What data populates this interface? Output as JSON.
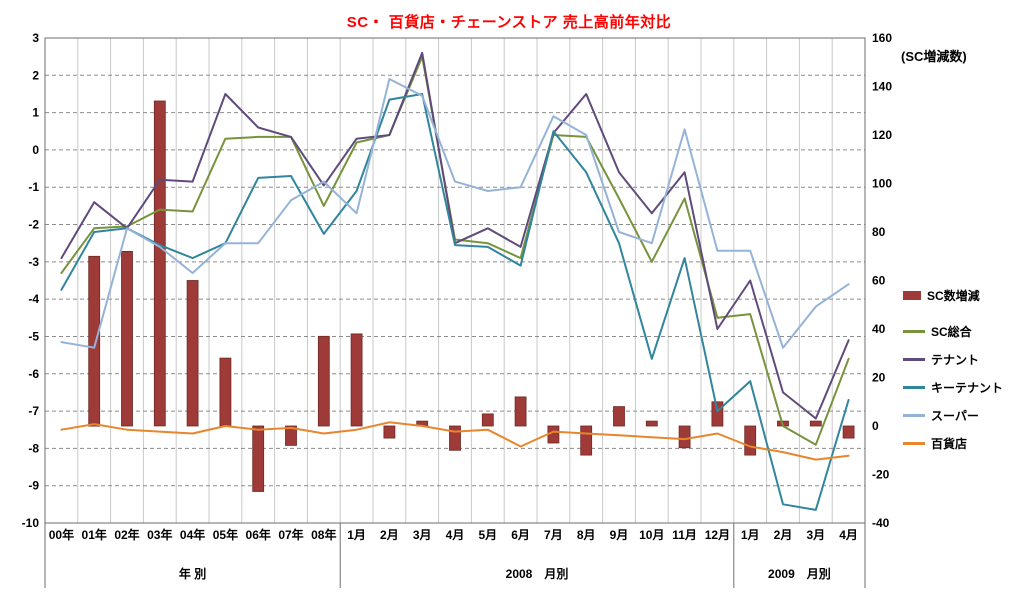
{
  "title": "SC・ 百貨店・チェーンストア 売上高前年対比",
  "colors": {
    "title": "#FF0000",
    "grid": "#8C8C8C",
    "vgrid": "#C9C9C9",
    "axis": "#6E6E6E",
    "text": "#000000",
    "background": "#FFFFFF"
  },
  "chart_data": {
    "type": "combo",
    "categories": [
      "00年",
      "01年",
      "02年",
      "03年",
      "04年",
      "05年",
      "06年",
      "07年",
      "08年",
      "1月",
      "2月",
      "3月",
      "4月",
      "5月",
      "6月",
      "7月",
      "8月",
      "9月",
      "10月",
      "11月",
      "12月",
      "1月",
      "2月",
      "3月",
      "4月"
    ],
    "left_axis": {
      "min": -10,
      "max": 3,
      "step": 1
    },
    "right_axis": {
      "min": -40,
      "max": 160,
      "step": 20,
      "title": "(SC増減数)"
    },
    "category_groups": [
      {
        "label": "年 別",
        "start": 0,
        "end": 8
      },
      {
        "label": "2008　月別",
        "start": 9,
        "end": 20
      },
      {
        "label": "2009　月別",
        "start": 21,
        "end": 24
      }
    ],
    "grid": "dashed-horizontal",
    "legend_position": "right",
    "series": [
      {
        "name": "SC数増減",
        "type": "bar",
        "axis": "right",
        "color": "#9E3B38",
        "border": "#6E2824",
        "values": [
          null,
          70,
          72,
          134,
          60,
          28,
          -27,
          -8,
          37,
          38,
          -5,
          2,
          -10,
          5,
          12,
          -7,
          -12,
          8,
          2,
          -9,
          10,
          -12,
          2,
          2,
          -5
        ]
      },
      {
        "name": "SC総合",
        "type": "line",
        "axis": "left",
        "color": "#77933C",
        "values": [
          -3.3,
          -2.1,
          -2.05,
          -1.6,
          -1.65,
          0.3,
          0.35,
          0.35,
          -1.5,
          0.2,
          0.4,
          2.5,
          -2.4,
          -2.5,
          -2.9,
          0.4,
          0.35,
          -1.3,
          -3.0,
          -1.3,
          -4.5,
          -4.4,
          -7.4,
          -7.9,
          -5.6
        ]
      },
      {
        "name": "テナント",
        "type": "line",
        "axis": "left",
        "color": "#604A7B",
        "values": [
          -2.9,
          -1.4,
          -2.1,
          -0.8,
          -0.85,
          1.5,
          0.6,
          0.35,
          -0.95,
          0.3,
          0.4,
          2.6,
          -2.5,
          -2.1,
          -2.6,
          0.45,
          1.5,
          -0.6,
          -1.7,
          -0.6,
          -4.8,
          -3.5,
          -6.5,
          -7.2,
          -5.1
        ]
      },
      {
        "name": "キーテナント",
        "type": "line",
        "axis": "left",
        "color": "#31859C",
        "values": [
          -3.75,
          -2.2,
          -2.1,
          -2.55,
          -2.9,
          -2.5,
          -0.75,
          -0.7,
          -2.25,
          -1.1,
          1.35,
          1.5,
          -2.55,
          -2.6,
          -3.1,
          0.5,
          -0.6,
          -2.5,
          -5.6,
          -2.9,
          -7.0,
          -6.2,
          -9.5,
          -9.65,
          -6.7
        ]
      },
      {
        "name": "スーパー",
        "type": "line",
        "axis": "left",
        "color": "#95B3D7",
        "values": [
          -5.15,
          -5.3,
          -2.1,
          -2.6,
          -3.3,
          -2.5,
          -2.5,
          -1.35,
          -0.85,
          -1.7,
          1.9,
          1.45,
          -0.85,
          -1.1,
          -1.0,
          0.9,
          0.4,
          -2.2,
          -2.5,
          0.55,
          -2.7,
          -2.7,
          -5.3,
          -4.2,
          -3.6
        ]
      },
      {
        "name": "百貨店",
        "type": "line",
        "axis": "left",
        "color": "#E8862D",
        "values": [
          -7.5,
          -7.35,
          -7.5,
          -7.55,
          -7.6,
          -7.4,
          -7.5,
          -7.45,
          -7.6,
          -7.5,
          -7.3,
          -7.4,
          -7.55,
          -7.5,
          -7.95,
          -7.55,
          -7.6,
          -7.65,
          -7.7,
          -7.75,
          -7.6,
          -7.95,
          -8.1,
          -8.3,
          -8.2
        ]
      }
    ]
  }
}
